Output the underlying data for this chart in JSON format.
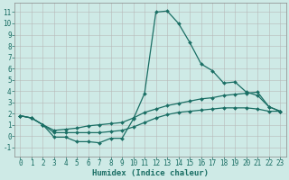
{
  "xlabel": "Humidex (Indice chaleur)",
  "bg_color": "#ceeae6",
  "grid_color": "#b8b8b8",
  "line_color": "#1a6e64",
  "x_ticks": [
    0,
    1,
    2,
    3,
    4,
    5,
    6,
    7,
    8,
    9,
    10,
    11,
    12,
    13,
    14,
    15,
    16,
    17,
    18,
    19,
    20,
    21,
    22,
    23
  ],
  "x_tick_labels": [
    "0",
    "1",
    "2",
    "3",
    "4",
    "5",
    "6",
    "7",
    "8",
    "9",
    "10",
    "11",
    "12",
    "13",
    "14",
    "15",
    "16",
    "17",
    "18",
    "19",
    "20",
    "21",
    "22",
    "23"
  ],
  "ylim": [
    -1.8,
    11.8
  ],
  "xlim": [
    -0.5,
    23.5
  ],
  "series1_x": [
    0,
    1,
    2,
    3,
    4,
    5,
    6,
    7,
    8,
    9,
    10,
    11,
    12,
    13,
    14,
    15,
    16,
    17,
    18,
    19,
    20,
    21,
    22,
    23
  ],
  "series1_y": [
    1.8,
    1.6,
    1.0,
    -0.1,
    -0.1,
    -0.5,
    -0.5,
    -0.6,
    -0.2,
    -0.2,
    1.5,
    3.8,
    11.0,
    11.1,
    10.0,
    8.3,
    6.4,
    5.8,
    4.7,
    4.8,
    3.9,
    3.6,
    2.6,
    2.2
  ],
  "series2_x": [
    0,
    1,
    2,
    3,
    4,
    5,
    6,
    7,
    8,
    9,
    10,
    11,
    12,
    13,
    14,
    15,
    16,
    17,
    18,
    19,
    20,
    21,
    22,
    23
  ],
  "series2_y": [
    1.8,
    1.6,
    1.0,
    0.5,
    0.6,
    0.7,
    0.9,
    1.0,
    1.1,
    1.2,
    1.6,
    2.1,
    2.4,
    2.7,
    2.9,
    3.1,
    3.3,
    3.4,
    3.6,
    3.7,
    3.8,
    3.9,
    2.6,
    2.2
  ],
  "series3_x": [
    0,
    1,
    2,
    3,
    4,
    5,
    6,
    7,
    8,
    9,
    10,
    11,
    12,
    13,
    14,
    15,
    16,
    17,
    18,
    19,
    20,
    21,
    22,
    23
  ],
  "series3_y": [
    1.8,
    1.6,
    1.0,
    0.3,
    0.3,
    0.3,
    0.3,
    0.3,
    0.4,
    0.5,
    0.8,
    1.2,
    1.6,
    1.9,
    2.1,
    2.2,
    2.3,
    2.4,
    2.5,
    2.5,
    2.5,
    2.4,
    2.2,
    2.2
  ],
  "marker_size": 2.0,
  "line_width": 0.9,
  "tick_fontsize": 5.5,
  "xlabel_fontsize": 6.5
}
